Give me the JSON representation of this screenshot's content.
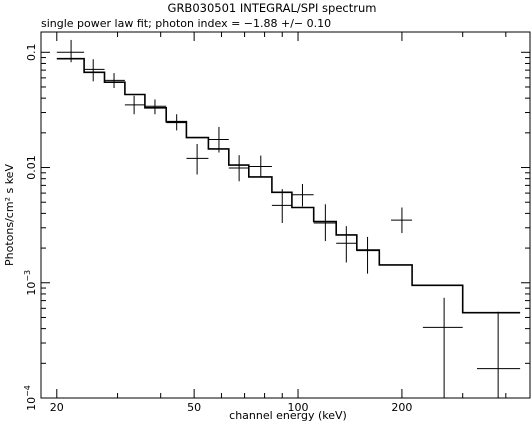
{
  "chart_data": {
    "type": "scatter",
    "title": "GRB030501 INTEGRAL/SPI spectrum",
    "subtitle": "single power law fit; photon index = −1.88 +/− 0.10",
    "xlabel": "channel energy (keV)",
    "ylabel": "Photons/cm² s keV",
    "x_scale": "log",
    "y_scale": "log",
    "xlim": [
      18,
      470
    ],
    "ylim": [
      0.0001,
      0.15
    ],
    "x_ticks": [
      {
        "value": 20,
        "label": "20"
      },
      {
        "value": 50,
        "label": "50"
      },
      {
        "value": 100,
        "label": "100"
      },
      {
        "value": 200,
        "label": "200"
      }
    ],
    "y_ticks": [
      {
        "value": 0.1,
        "label": "0.1"
      },
      {
        "value": 0.01,
        "label": "0.01"
      },
      {
        "value": 0.001,
        "label": "10",
        "exp": "−3"
      },
      {
        "value": 0.0001,
        "label": "10",
        "exp": "−4"
      }
    ],
    "grid": false,
    "series": [
      {
        "kind": "data-with-errors",
        "points": [
          {
            "x": 22,
            "xlo": 20,
            "xhi": 24,
            "y": 0.1,
            "ylo": 0.082,
            "yhi": 0.128
          },
          {
            "x": 25.5,
            "xlo": 24,
            "xhi": 27.5,
            "y": 0.071,
            "ylo": 0.056,
            "yhi": 0.087
          },
          {
            "x": 29.3,
            "xlo": 27.5,
            "xhi": 31.5,
            "y": 0.057,
            "ylo": 0.049,
            "yhi": 0.066
          },
          {
            "x": 33.5,
            "xlo": 31.5,
            "xhi": 36,
            "y": 0.035,
            "ylo": 0.029,
            "yhi": 0.042
          },
          {
            "x": 38.5,
            "xlo": 36,
            "xhi": 41.5,
            "y": 0.034,
            "ylo": 0.029,
            "yhi": 0.039
          },
          {
            "x": 44.5,
            "xlo": 41.5,
            "xhi": 47.5,
            "y": 0.0245,
            "ylo": 0.021,
            "yhi": 0.029
          },
          {
            "x": 51,
            "xlo": 47.5,
            "xhi": 55,
            "y": 0.012,
            "ylo": 0.0087,
            "yhi": 0.016
          },
          {
            "x": 59,
            "xlo": 55,
            "xhi": 63,
            "y": 0.0175,
            "ylo": 0.0135,
            "yhi": 0.0225
          },
          {
            "x": 67.5,
            "xlo": 63,
            "xhi": 72,
            "y": 0.0099,
            "ylo": 0.0076,
            "yhi": 0.0128
          },
          {
            "x": 78,
            "xlo": 72,
            "xhi": 84,
            "y": 0.0102,
            "ylo": 0.0082,
            "yhi": 0.0127
          },
          {
            "x": 90,
            "xlo": 84,
            "xhi": 96,
            "y": 0.0047,
            "ylo": 0.0033,
            "yhi": 0.0065
          },
          {
            "x": 103,
            "xlo": 96,
            "xhi": 111,
            "y": 0.0058,
            "ylo": 0.0046,
            "yhi": 0.0072
          },
          {
            "x": 120,
            "xlo": 111,
            "xhi": 129,
            "y": 0.0033,
            "ylo": 0.0023,
            "yhi": 0.0048
          },
          {
            "x": 138,
            "xlo": 129,
            "xhi": 148,
            "y": 0.0022,
            "ylo": 0.0015,
            "yhi": 0.0031
          },
          {
            "x": 159,
            "xlo": 148,
            "xhi": 172,
            "y": 0.0019,
            "ylo": 0.0012,
            "yhi": 0.0025
          },
          {
            "x": 200,
            "xlo": 186,
            "xhi": 214,
            "y": 0.0035,
            "ylo": 0.0027,
            "yhi": 0.0045
          },
          {
            "x": 265,
            "xlo": 230,
            "xhi": 300,
            "y": 0.00041,
            "ylo": 0.0001,
            "yhi": 0.00074
          },
          {
            "x": 380,
            "xlo": 330,
            "xhi": 440,
            "y": 0.00018,
            "ylo": 0.0001,
            "yhi": 0.00056
          }
        ]
      },
      {
        "kind": "model-histogram",
        "edges": [
          20,
          24,
          27.5,
          31.5,
          36,
          41.5,
          47.5,
          55,
          63,
          72,
          84,
          96,
          111,
          129,
          148,
          172,
          214,
          300,
          440
        ],
        "values": [
          0.088,
          0.067,
          0.055,
          0.043,
          0.033,
          0.025,
          0.0182,
          0.0145,
          0.0105,
          0.0083,
          0.0061,
          0.0045,
          0.0034,
          0.0026,
          0.00192,
          0.00143,
          0.00095,
          0.00055
        ]
      }
    ]
  }
}
